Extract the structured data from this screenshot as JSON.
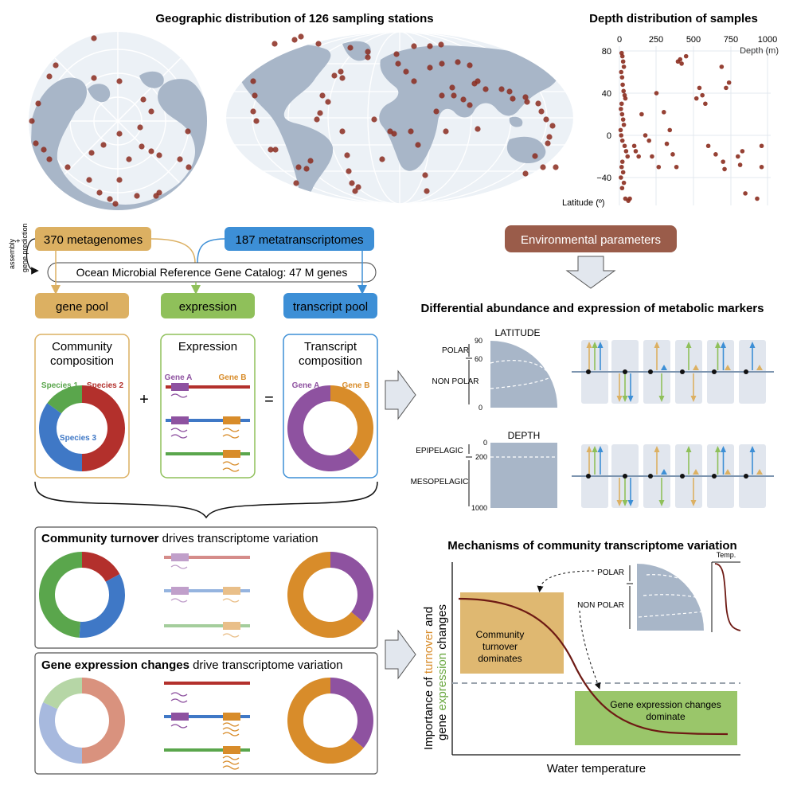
{
  "maps": {
    "title": "Geographic distribution of 126 sampling stations"
  },
  "depth_chart": {
    "title": "Depth distribution of samples",
    "x_label": "Depth (m)",
    "y_label": "Latitude (º)",
    "x_ticks": [
      "0",
      "250",
      "500",
      "750",
      "1000"
    ],
    "y_ticks": [
      "80",
      "40",
      "0",
      "−40"
    ]
  },
  "workflow": {
    "metagenomes": "370 metagenomes",
    "metatranscriptomes": "187 metatranscriptomes",
    "side_label_1": "assembly",
    "side_label_2": "+",
    "side_label_3": "gene prediction",
    "catalog": "Ocean Microbial Reference Gene Catalog: 47 M genes",
    "gene_pool": "gene pool",
    "expression": "expression",
    "transcript_pool": "transcript pool",
    "env_params": "Environmental parameters"
  },
  "panels": {
    "community_title_1": "Community",
    "community_title_2": "composition",
    "species1": "Species 1",
    "species2": "Species 2",
    "species3": "Species 3",
    "expression_title": "Expression",
    "gene_a": "Gene A",
    "gene_b": "Gene B",
    "transcript_title_1": "Transcript",
    "transcript_title_2": "composition",
    "plus": "+",
    "equals": "="
  },
  "markers": {
    "title": "Differential abundance and expression of metabolic markers",
    "latitude": "LATITUDE",
    "polar": "POLAR",
    "non_polar": "NON POLAR",
    "lat_90": "90",
    "lat_60": "60",
    "lat_0": "0",
    "depth": "DEPTH",
    "epipelagic": "EPIPELAGIC",
    "mesopelagic": "MESOPELAGIC",
    "depth_0": "0",
    "depth_200": "200",
    "depth_1000": "1000"
  },
  "scenarios": {
    "turnover_bold": "Community turnover",
    "turnover_rest": " drives transcriptome variation",
    "expr_bold": "Gene expression changes",
    "expr_rest": " drive transcriptome variation"
  },
  "mechanisms": {
    "title": "Mechanisms of community transcriptome variation",
    "y_label_1": "Importance of ",
    "y_label_turnover": "turnover",
    "y_label_and": " and",
    "y_label_gene": "gene ",
    "y_label_expression": "expression",
    "y_label_changes": " changes",
    "x_label": "Water temperature",
    "turnover_box_1": "Community",
    "turnover_box_2": "turnover",
    "turnover_box_3": "dominates",
    "expr_box_1": "Gene expression changes",
    "expr_box_2": "dominate",
    "polar": "POLAR",
    "non_polar": "NON POLAR",
    "temp": "Temp."
  },
  "colors": {
    "dot": "#8b2c1e",
    "land": "#a8b6c8",
    "ocean": "#ecf1f6",
    "gold": "#dcb062",
    "green": "#8fc05a",
    "blue": "#3d8fd6",
    "env": "#9a5c4a",
    "species1": "#5aa64c",
    "species2": "#b3302c",
    "species3": "#3f78c6",
    "geneA": "#8e52a0",
    "geneB": "#d88c2a"
  }
}
